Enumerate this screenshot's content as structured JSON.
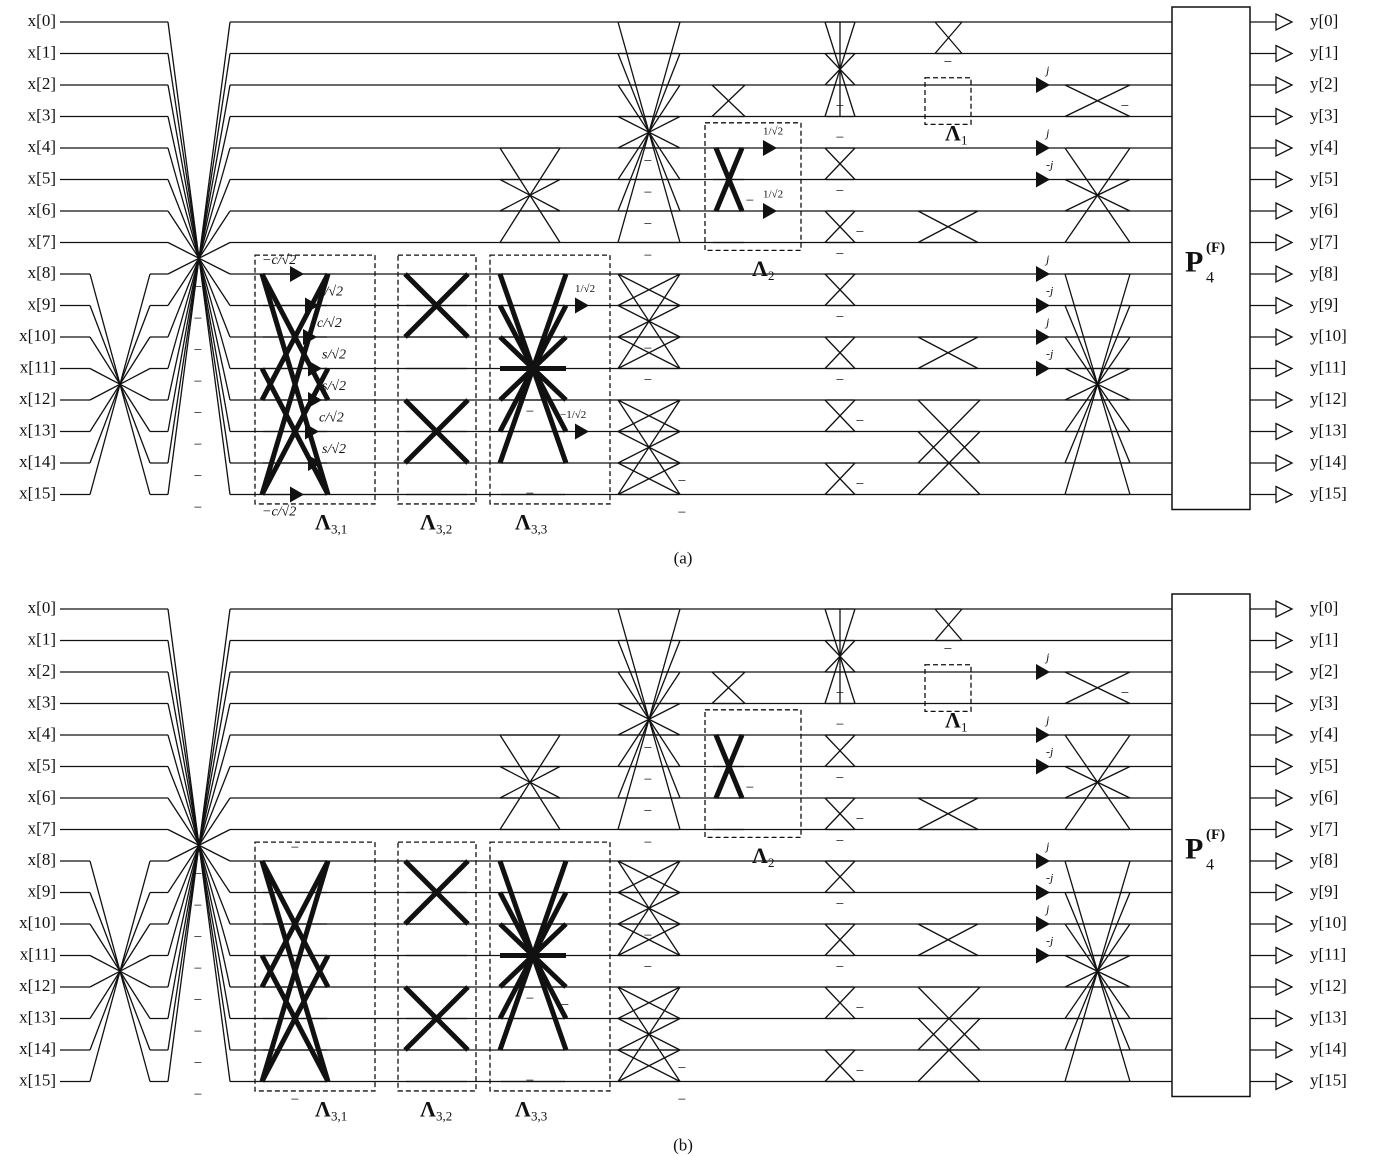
{
  "minus_sign": "−",
  "panels": [
    {
      "caption": "(a)",
      "inputs": [
        "x[0]",
        "x[1]",
        "x[2]",
        "x[3]",
        "x[4]",
        "x[5]",
        "x[6]",
        "x[7]",
        "x[8]",
        "x[9]",
        "x[10]",
        "x[11]",
        "x[12]",
        "x[13]",
        "x[14]",
        "x[15]"
      ],
      "outputs": [
        "y[0]",
        "y[1]",
        "y[2]",
        "y[3]",
        "y[4]",
        "y[5]",
        "y[6]",
        "y[7]",
        "y[8]",
        "y[9]",
        "y[10]",
        "y[11]",
        "y[12]",
        "y[13]",
        "y[14]",
        "y[15]"
      ],
      "block_label": {
        "base": "P",
        "sub": "4",
        "sup": "(F)"
      },
      "lambda_labels": [
        {
          "symbol": "Λ",
          "sub": "1"
        },
        {
          "symbol": "Λ",
          "sub": "2"
        },
        {
          "symbol": "Λ",
          "sub": "3,1"
        },
        {
          "symbol": "Λ",
          "sub": "3,2"
        },
        {
          "symbol": "Λ",
          "sub": "3,3"
        }
      ],
      "rotation_gains": [
        "−c/√2",
        "s/√2",
        "c/√2",
        "s/√2",
        "s/√2",
        "c/√2",
        "s/√2",
        "−c/√2"
      ],
      "scale_gains": [
        "1/√2",
        "−1/√2",
        "1/√2",
        "1/√2"
      ],
      "twiddle_labels": [
        "j",
        "j",
        "-j",
        "j",
        "-j",
        "j",
        "-j"
      ]
    },
    {
      "caption": "(b)",
      "inputs": [
        "x[0]",
        "x[1]",
        "x[2]",
        "x[3]",
        "x[4]",
        "x[5]",
        "x[6]",
        "x[7]",
        "x[8]",
        "x[9]",
        "x[10]",
        "x[11]",
        "x[12]",
        "x[13]",
        "x[14]",
        "x[15]"
      ],
      "outputs": [
        "y[0]",
        "y[1]",
        "y[2]",
        "y[3]",
        "y[4]",
        "y[5]",
        "y[6]",
        "y[7]",
        "y[8]",
        "y[9]",
        "y[10]",
        "y[11]",
        "y[12]",
        "y[13]",
        "y[14]",
        "y[15]"
      ],
      "block_label": {
        "base": "P",
        "sub": "4",
        "sup": "(F)"
      },
      "lambda_labels": [
        {
          "symbol": "Λ",
          "sub": "1"
        },
        {
          "symbol": "Λ",
          "sub": "2"
        },
        {
          "symbol": "Λ",
          "sub": "3,1"
        },
        {
          "symbol": "Λ",
          "sub": "3,2"
        },
        {
          "symbol": "Λ",
          "sub": "3,3"
        }
      ],
      "twiddle_labels": [
        "j",
        "j",
        "-j",
        "j",
        "-j",
        "j",
        "-j"
      ]
    }
  ]
}
